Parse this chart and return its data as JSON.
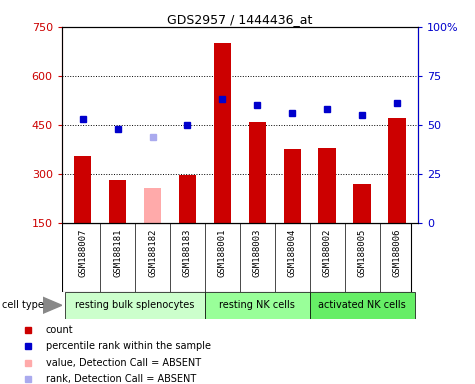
{
  "title": "GDS2957 / 1444436_at",
  "samples": [
    "GSM188007",
    "GSM188181",
    "GSM188182",
    "GSM188183",
    "GSM188001",
    "GSM188003",
    "GSM188004",
    "GSM188002",
    "GSM188005",
    "GSM188006"
  ],
  "counts": [
    355,
    280,
    null,
    295,
    700,
    460,
    375,
    380,
    270,
    470
  ],
  "counts_absent": [
    null,
    null,
    255,
    null,
    null,
    null,
    null,
    null,
    null,
    null
  ],
  "percentile_ranks": [
    53,
    48,
    null,
    50,
    63,
    60,
    56,
    58,
    55,
    61
  ],
  "percentile_ranks_absent": [
    null,
    null,
    44,
    null,
    null,
    null,
    null,
    null,
    null,
    null
  ],
  "ylim_left": [
    150,
    750
  ],
  "ylim_right": [
    0,
    100
  ],
  "yticks_left": [
    150,
    300,
    450,
    600,
    750
  ],
  "ytick_labels_left": [
    "150",
    "300",
    "450",
    "600",
    "750"
  ],
  "yticks_right": [
    0,
    25,
    50,
    75,
    100
  ],
  "ytick_labels_right": [
    "0",
    "25",
    "50",
    "75",
    "100%"
  ],
  "hlines": [
    300,
    450,
    600
  ],
  "cell_groups": [
    {
      "label": "resting bulk splenocytes",
      "start": 0,
      "end": 4,
      "color": "#ccffcc"
    },
    {
      "label": "resting NK cells",
      "start": 4,
      "end": 7,
      "color": "#99ff99"
    },
    {
      "label": "activated NK cells",
      "start": 7,
      "end": 10,
      "color": "#66ee66"
    }
  ],
  "bar_color_present": "#cc0000",
  "bar_color_absent": "#ffaaaa",
  "dot_color_present": "#0000cc",
  "dot_color_absent": "#aaaaee",
  "bar_width": 0.5,
  "bg_color": "#d8d8d8",
  "cell_type_label": "cell type",
  "legend_items": [
    {
      "color": "#cc0000",
      "label": "count"
    },
    {
      "color": "#0000cc",
      "label": "percentile rank within the sample"
    },
    {
      "color": "#ffaaaa",
      "label": "value, Detection Call = ABSENT"
    },
    {
      "color": "#aaaaee",
      "label": "rank, Detection Call = ABSENT"
    }
  ]
}
